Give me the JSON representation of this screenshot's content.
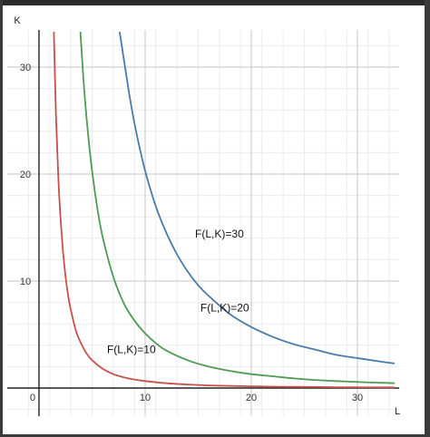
{
  "chart_data": {
    "type": "line",
    "title": "",
    "xlabel": "L",
    "ylabel": "K",
    "xlim": [
      -1,
      34
    ],
    "ylim": [
      -2.5,
      33.5
    ],
    "grid": true,
    "origin_label": "0",
    "x_ticks": [
      {
        "value": 10,
        "label": "10"
      },
      {
        "value": 20,
        "label": "20"
      },
      {
        "value": 30,
        "label": "30"
      }
    ],
    "y_ticks": [
      {
        "value": 10,
        "label": "10"
      },
      {
        "value": 20,
        "label": "20"
      },
      {
        "value": 30,
        "label": "30"
      }
    ],
    "series": [
      {
        "name": "F(L,K)=10",
        "label": "F(L,K)=10",
        "color": "#c8504a",
        "label_at": [
          8.7,
          3.6
        ],
        "x": [
          1.4,
          1.6,
          1.8,
          2,
          2.25,
          2.5,
          2.75,
          3,
          3.5,
          4,
          4.5,
          5,
          6,
          7,
          8,
          9,
          10,
          12,
          14,
          16,
          18,
          20,
          22,
          24,
          26,
          28,
          30,
          32,
          33.5
        ],
        "y": [
          33.3,
          25.5,
          20.1,
          16.3,
          12.9,
          10.4,
          8.6,
          7.3,
          5.3,
          4.1,
          3.2,
          2.6,
          1.8,
          1.3,
          1.0,
          0.8,
          0.65,
          0.45,
          0.33,
          0.25,
          0.2,
          0.16,
          0.13,
          0.11,
          0.1,
          0.08,
          0.07,
          0.06,
          0.06
        ]
      },
      {
        "name": "F(L,K)=20",
        "label": "F(L,K)=20",
        "color": "#4f9a55",
        "label_at": [
          17.5,
          7.5
        ],
        "x": [
          3.9,
          4.2,
          4.5,
          5,
          5.5,
          6,
          7,
          8,
          9,
          10,
          11,
          12,
          14,
          16,
          18,
          20,
          22,
          24,
          26,
          28,
          30,
          32,
          33.5
        ],
        "y": [
          33.3,
          28.7,
          25.0,
          20.3,
          16.8,
          14.1,
          10.4,
          7.9,
          6.3,
          5.1,
          4.2,
          3.5,
          2.6,
          2.0,
          1.6,
          1.3,
          1.1,
          0.9,
          0.75,
          0.65,
          0.57,
          0.5,
          0.45
        ]
      },
      {
        "name": "F(L,K)=30",
        "label": "F(L,K)=30",
        "color": "#4a7aa8",
        "label_at": [
          17,
          14.4
        ],
        "x": [
          7.6,
          8,
          8.5,
          9,
          9.5,
          10,
          11,
          12,
          13,
          14,
          15,
          16,
          18,
          20,
          22,
          24,
          26,
          28,
          30,
          32,
          33.5
        ],
        "y": [
          33.3,
          30.7,
          27.5,
          24.7,
          22.4,
          20.3,
          17.0,
          14.5,
          12.5,
          10.9,
          9.6,
          8.6,
          6.9,
          5.7,
          4.8,
          4.1,
          3.6,
          3.1,
          2.8,
          2.5,
          2.3
        ]
      }
    ]
  }
}
